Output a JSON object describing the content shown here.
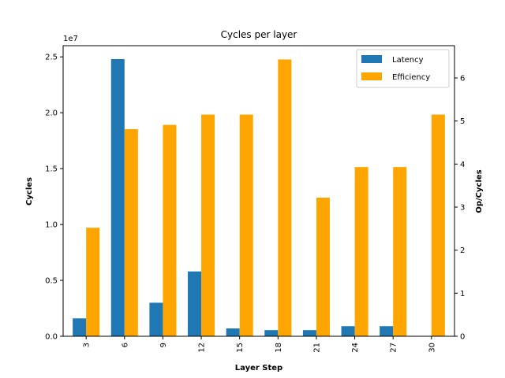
{
  "chart_data": {
    "type": "bar",
    "title": "Cycles per layer",
    "xlabel": "Layer Step",
    "ylabel": "Cycles",
    "y2label": "Op/Cycles",
    "y_scale_label": "1e7",
    "categories": [
      "3",
      "6",
      "9",
      "12",
      "15",
      "18",
      "21",
      "24",
      "27",
      "30"
    ],
    "ylim": [
      0,
      26000000
    ],
    "y2lim": [
      0,
      6.75
    ],
    "yticks": [
      0,
      5000000,
      10000000,
      15000000,
      20000000,
      25000000
    ],
    "ytick_labels": [
      "0.0",
      "0.5",
      "1.0",
      "1.5",
      "2.0",
      "2.5"
    ],
    "y2ticks": [
      0,
      1,
      2,
      3,
      4,
      5,
      6
    ],
    "y2tick_labels": [
      "0",
      "1",
      "2",
      "3",
      "4",
      "5",
      "6"
    ],
    "series": [
      {
        "name": "Latency",
        "axis": "left",
        "color": "#1f77b4",
        "values": [
          1600000,
          24800000,
          3000000,
          5800000,
          700000,
          550000,
          550000,
          900000,
          900000,
          0
        ]
      },
      {
        "name": "Efficiency",
        "axis": "right",
        "color": "#ffa500",
        "values": [
          2.52,
          4.81,
          4.91,
          5.15,
          5.15,
          6.43,
          3.22,
          3.93,
          3.93,
          5.15
        ]
      }
    ],
    "legend_position": "top-right",
    "grid": false
  }
}
